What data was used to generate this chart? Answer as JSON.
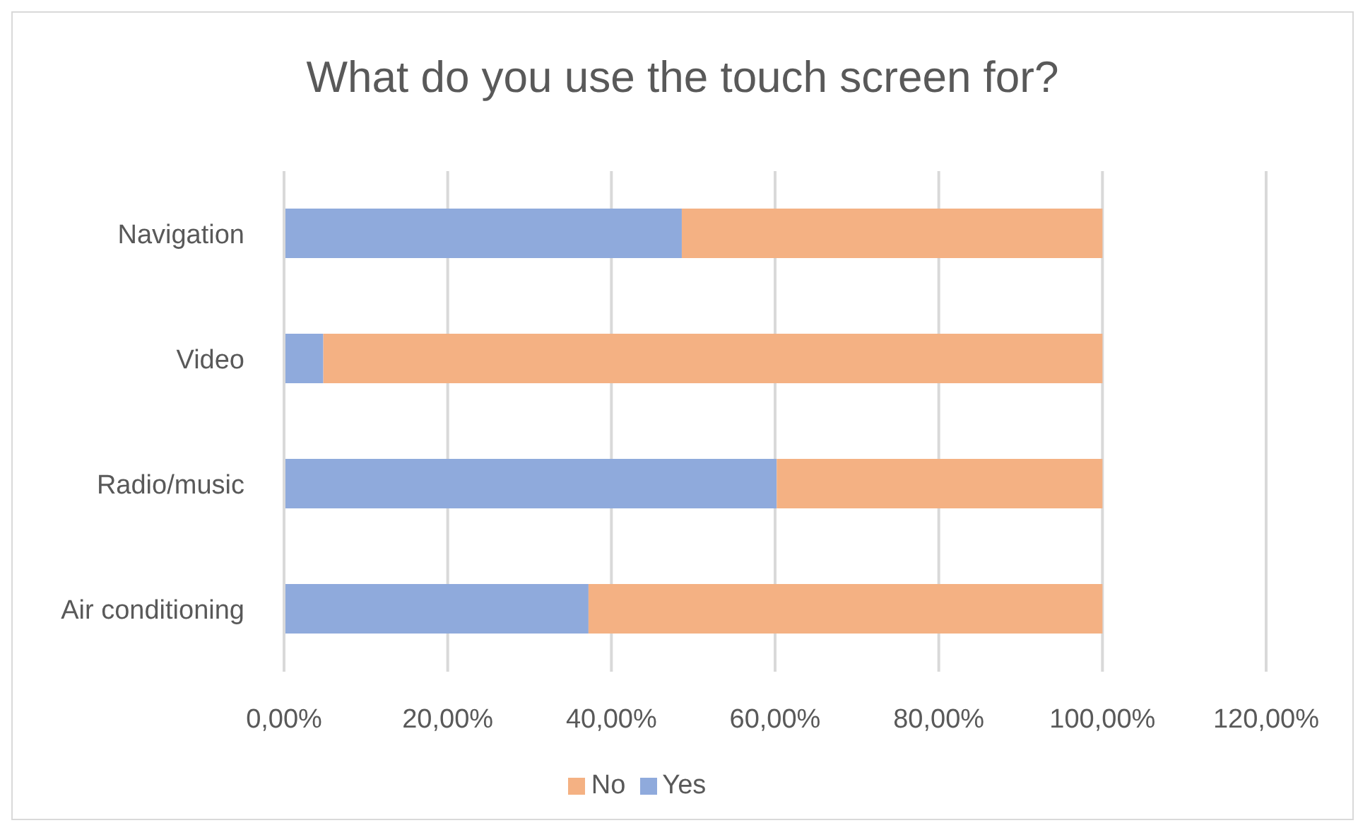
{
  "chart_data": {
    "type": "bar",
    "title": "What do you use the touch screen for?",
    "orientation": "horizontal",
    "stacked": true,
    "categories": [
      "Navigation",
      "Video",
      "Radio/music",
      "Air conditioning"
    ],
    "series": [
      {
        "name": "Yes",
        "color": "#8faadc",
        "values": [
          48.6,
          4.8,
          60.2,
          37.2
        ]
      },
      {
        "name": "No",
        "color": "#f4b183",
        "values": [
          51.4,
          95.2,
          39.8,
          62.8
        ]
      }
    ],
    "xlim": [
      0,
      120
    ],
    "xticks": [
      {
        "value": 0,
        "label": "0,00%"
      },
      {
        "value": 20,
        "label": "20,00%"
      },
      {
        "value": 40,
        "label": "40,00%"
      },
      {
        "value": 60,
        "label": "60,00%"
      },
      {
        "value": 80,
        "label": "80,00%"
      },
      {
        "value": 100,
        "label": "100,00%"
      },
      {
        "value": 120,
        "label": "120,00%"
      }
    ],
    "grid": "x",
    "legend": "bottom"
  }
}
